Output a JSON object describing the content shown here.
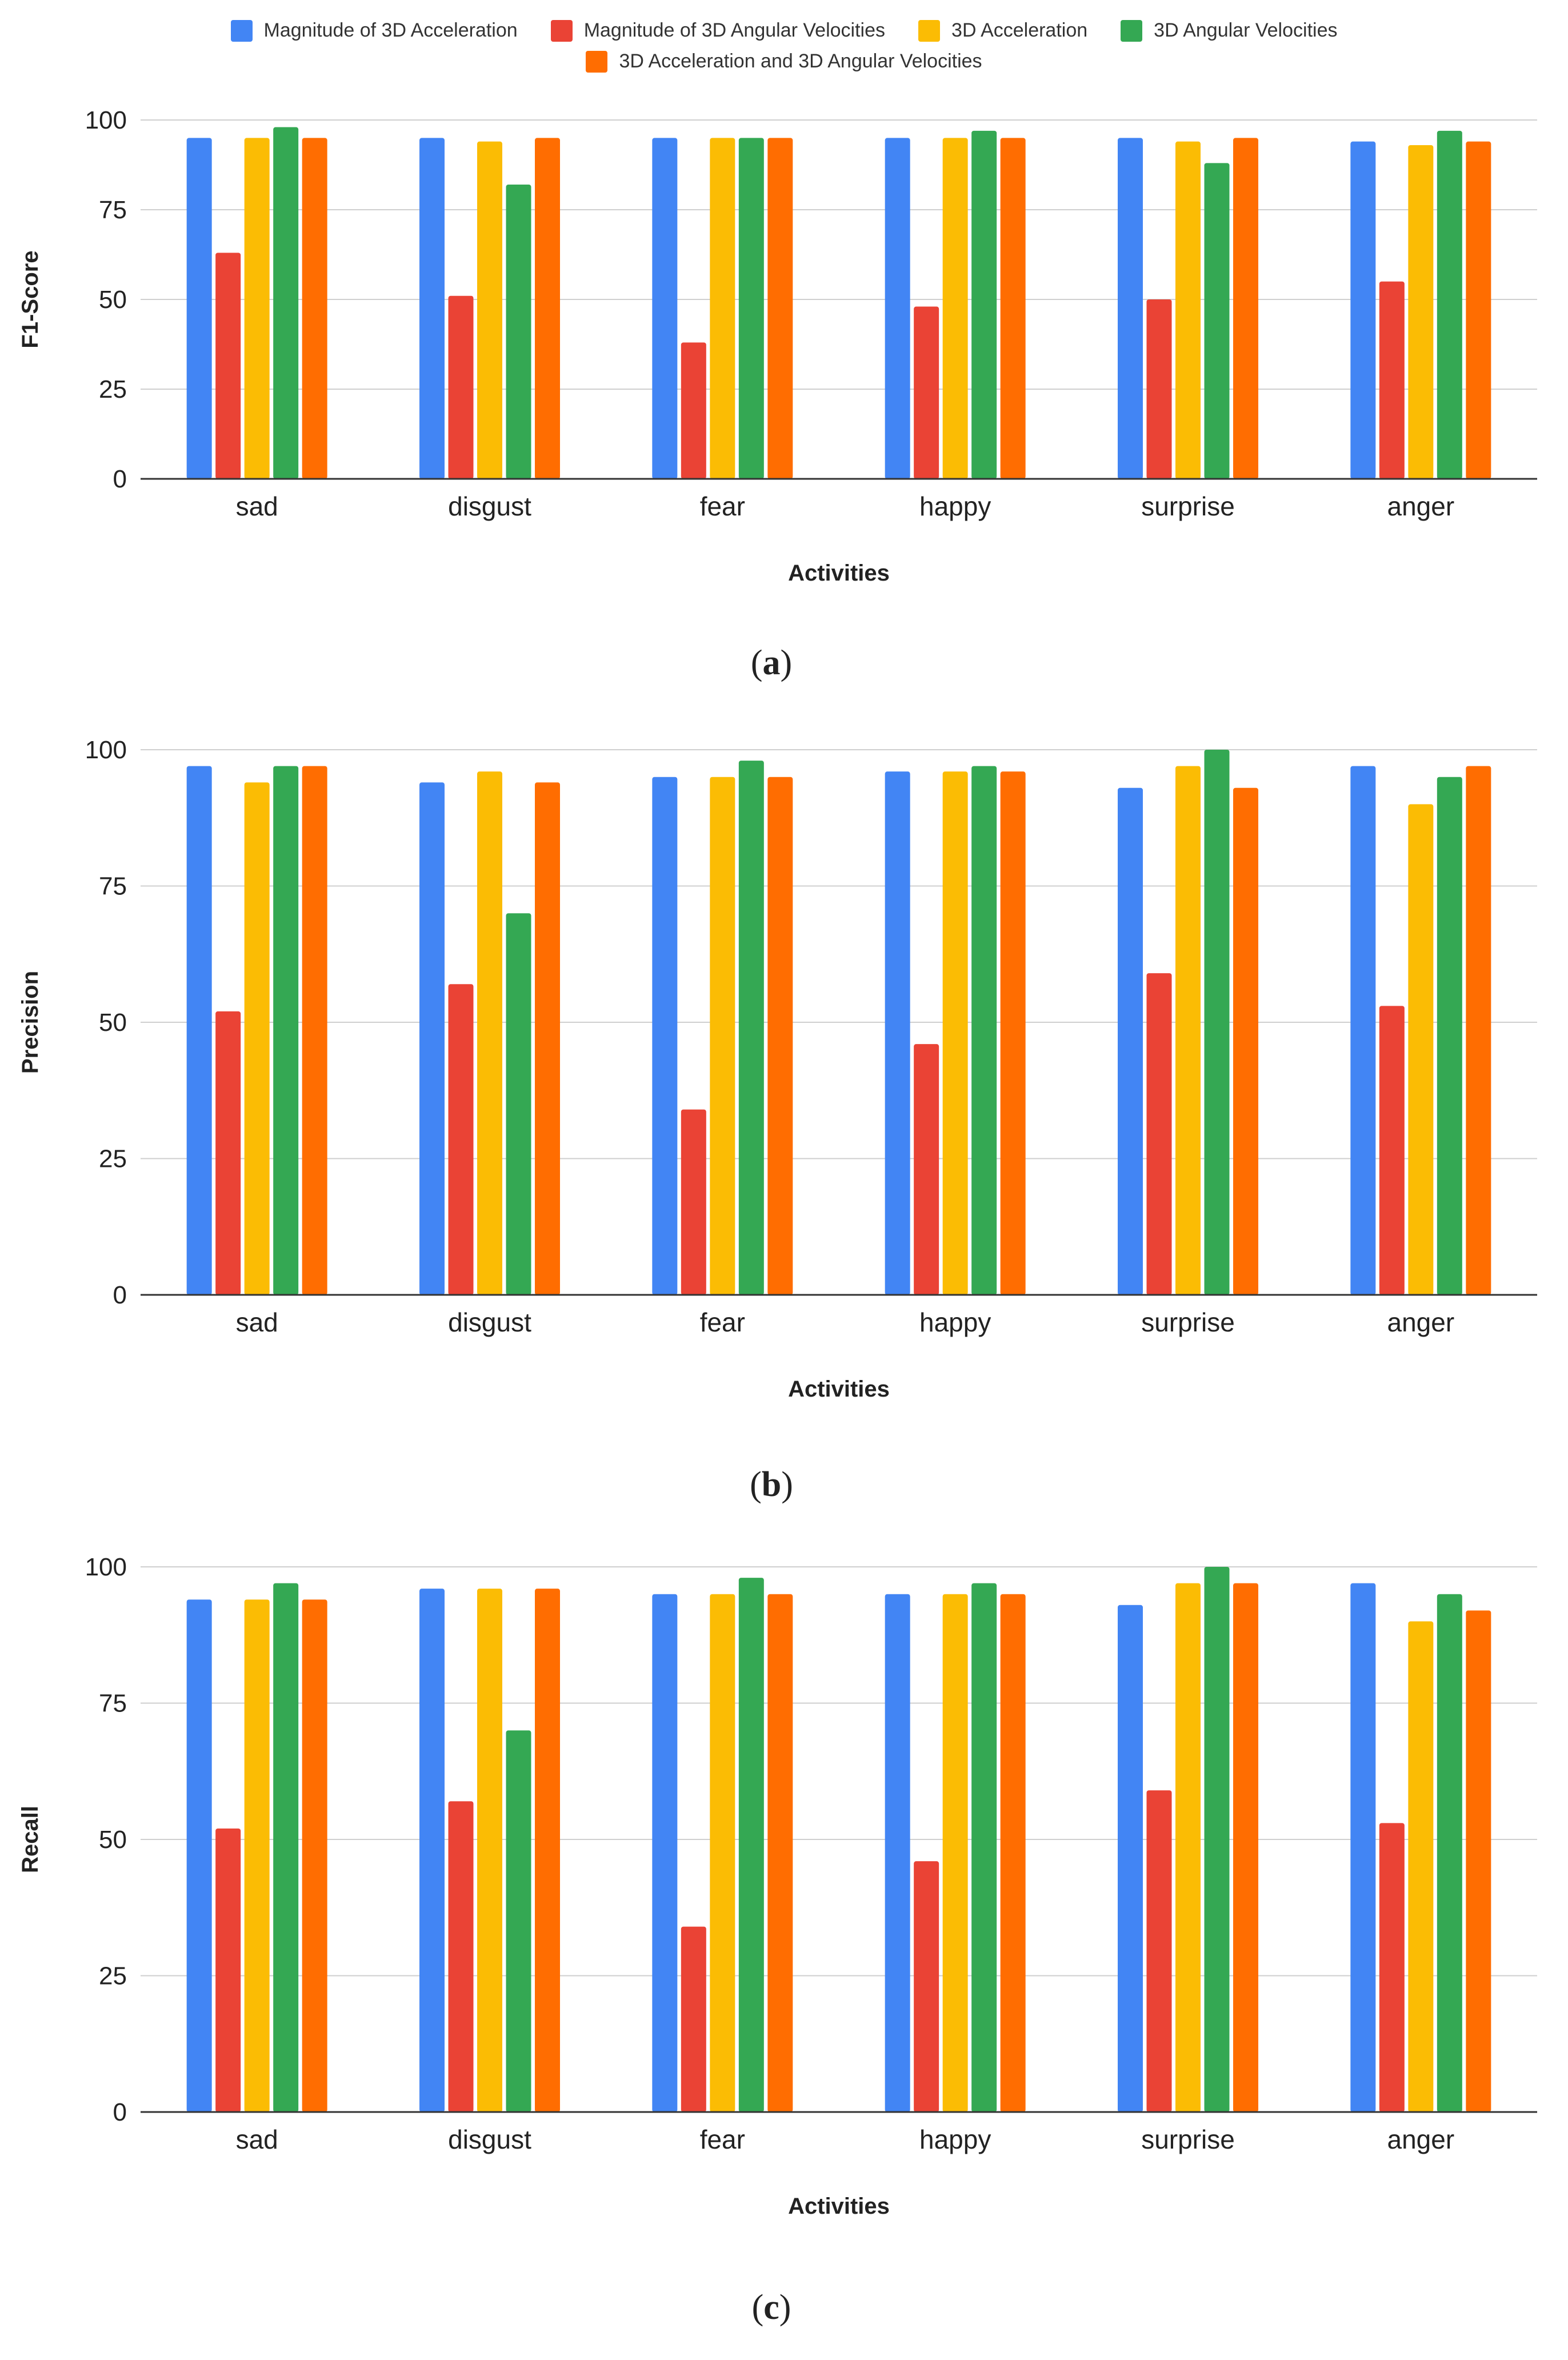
{
  "legend": [
    {
      "name": "Magnitude of 3D Acceleration",
      "color": "#4285F4"
    },
    {
      "name": "Magnitude of 3D Angular Velocities",
      "color": "#EA4335"
    },
    {
      "name": "3D Acceleration",
      "color": "#FBBC04"
    },
    {
      "name": "3D Angular Velocities",
      "color": "#34A853"
    },
    {
      "name": "3D Acceleration and 3D Angular Velocities",
      "color": "#FF6D01"
    }
  ],
  "chart_data": [
    {
      "type": "bar",
      "panel": "a",
      "categories": [
        "sad",
        "disgust",
        "fear",
        "happy",
        "surprise",
        "anger"
      ],
      "xlabel": "Activities",
      "ylabel": "F1-Score",
      "ylim": [
        0,
        100
      ],
      "yticks": [
        0,
        25,
        50,
        75,
        100
      ],
      "grid": true,
      "series": [
        {
          "name": "Magnitude of 3D Acceleration",
          "values": [
            95,
            95,
            95,
            95,
            95,
            94
          ]
        },
        {
          "name": "Magnitude of 3D Angular Velocities",
          "values": [
            63,
            51,
            38,
            48,
            50,
            55
          ]
        },
        {
          "name": "3D Acceleration",
          "values": [
            95,
            94,
            95,
            95,
            94,
            93
          ]
        },
        {
          "name": "3D Angular Velocities",
          "values": [
            98,
            82,
            95,
            97,
            88,
            97
          ]
        },
        {
          "name": "3D Acceleration and 3D Angular Velocities",
          "values": [
            95,
            95,
            95,
            95,
            95,
            94
          ]
        }
      ]
    },
    {
      "type": "bar",
      "panel": "b",
      "categories": [
        "sad",
        "disgust",
        "fear",
        "happy",
        "surprise",
        "anger"
      ],
      "xlabel": "Activities",
      "ylabel": "Precision",
      "ylim": [
        0,
        100
      ],
      "yticks": [
        0,
        25,
        50,
        75,
        100
      ],
      "grid": true,
      "series": [
        {
          "name": "Magnitude of 3D Acceleration",
          "values": [
            97,
            94,
            95,
            96,
            93,
            97
          ]
        },
        {
          "name": "Magnitude of 3D Angular Velocities",
          "values": [
            52,
            57,
            34,
            46,
            59,
            53
          ]
        },
        {
          "name": "3D Acceleration",
          "values": [
            94,
            96,
            95,
            96,
            97,
            90
          ]
        },
        {
          "name": "3D Angular Velocities",
          "values": [
            97,
            70,
            98,
            97,
            100,
            95
          ]
        },
        {
          "name": "3D Acceleration and 3D Angular Velocities",
          "values": [
            97,
            94,
            95,
            96,
            93,
            97
          ]
        }
      ]
    },
    {
      "type": "bar",
      "panel": "c",
      "categories": [
        "sad",
        "disgust",
        "fear",
        "happy",
        "surprise",
        "anger"
      ],
      "xlabel": "Activities",
      "ylabel": "Recall",
      "ylim": [
        0,
        100
      ],
      "yticks": [
        0,
        25,
        50,
        75,
        100
      ],
      "grid": true,
      "series": [
        {
          "name": "Magnitude of 3D Acceleration",
          "values": [
            94,
            96,
            95,
            95,
            93,
            97
          ]
        },
        {
          "name": "Magnitude of 3D Angular Velocities",
          "values": [
            52,
            57,
            34,
            46,
            59,
            53
          ]
        },
        {
          "name": "3D Acceleration",
          "values": [
            94,
            96,
            95,
            95,
            97,
            90
          ]
        },
        {
          "name": "3D Angular Velocities",
          "values": [
            97,
            70,
            98,
            97,
            100,
            95
          ]
        },
        {
          "name": "3D Acceleration and 3D Angular Velocities",
          "values": [
            94,
            96,
            95,
            95,
            97,
            92
          ]
        }
      ]
    }
  ]
}
